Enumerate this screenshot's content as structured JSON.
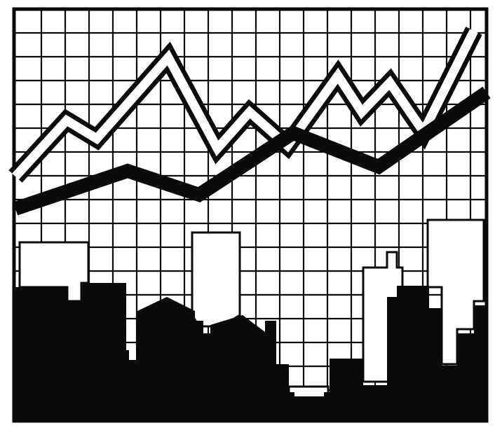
{
  "illustration": {
    "subject": "city-skyline-with-zigzag-lines",
    "colors": {
      "ink": "#0a0a0a",
      "paper": "#ffffff",
      "shadow": "#d9d9d9"
    },
    "grid": true,
    "lines": [
      "thick-black-line",
      "white-outlined-line"
    ],
    "watermark_text": ""
  }
}
